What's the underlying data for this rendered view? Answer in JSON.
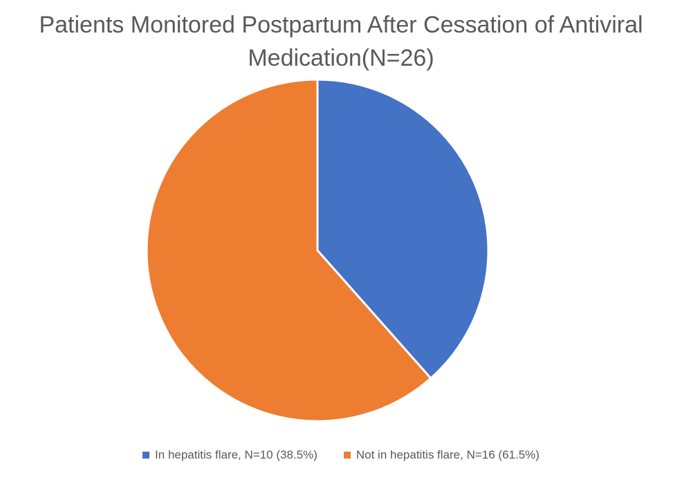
{
  "chart_data": {
    "type": "pie",
    "title": "Patients Monitored Postpartum After Cessation of Antiviral Medication(N=26)",
    "series": [
      {
        "name": "In hepatitis flare, N=10 (38.5%)",
        "value": 10,
        "color": "#4472C4"
      },
      {
        "name": "Not in hepatitis flare, N=16 (61.5%)",
        "value": 16,
        "color": "#ED7D31"
      }
    ],
    "legend_position": "bottom"
  }
}
